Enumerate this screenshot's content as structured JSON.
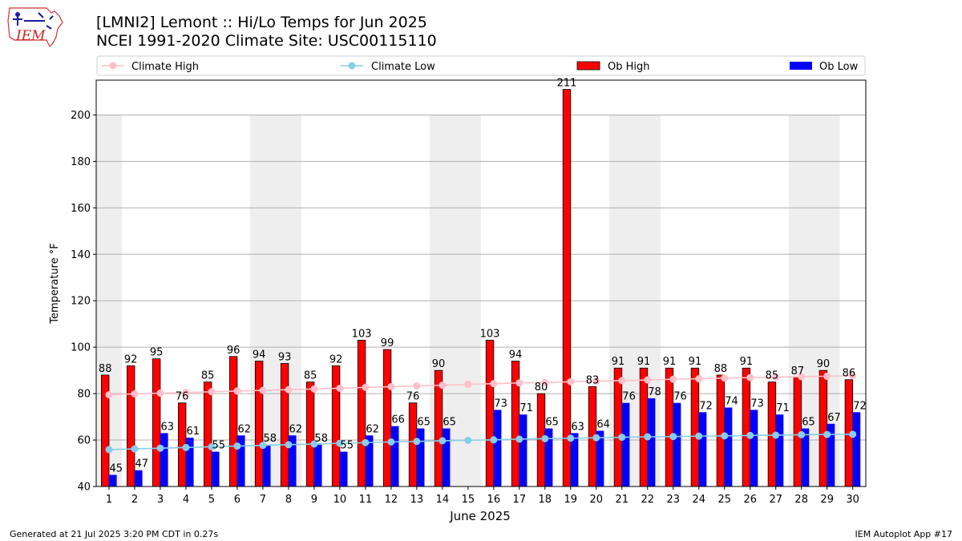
{
  "header": {
    "title_line1": "[LMNI2] Lemont :: Hi/Lo Temps for Jun 2025",
    "title_line2": "NCEI 1991-2020 Climate Site: USC00115110",
    "logo_text": "IEM"
  },
  "footer": {
    "generated": "Generated at 21 Jul 2025 3:20 PM CDT in 0.27s",
    "app": "IEM Autoplot App #17"
  },
  "colors": {
    "ob_high": "#ff0000",
    "ob_low": "#0000ff",
    "climate_high": "#ffc0cb",
    "climate_low": "#87ceeb",
    "weekend_shade": "#eeeeee",
    "grid": "#b0b0b0"
  },
  "chart_data": {
    "type": "bar",
    "xlabel": "June 2025",
    "ylabel": "Temperature °F",
    "ylim": [
      40,
      215
    ],
    "yticks": [
      40,
      60,
      80,
      100,
      120,
      140,
      160,
      180,
      200
    ],
    "grid": "horizontal",
    "legend_placement": "top, above plot",
    "categories": [
      "1",
      "2",
      "3",
      "4",
      "5",
      "6",
      "7",
      "8",
      "9",
      "10",
      "11",
      "12",
      "13",
      "14",
      "15",
      "16",
      "17",
      "18",
      "19",
      "20",
      "21",
      "22",
      "23",
      "24",
      "25",
      "26",
      "27",
      "28",
      "29",
      "30"
    ],
    "weekend_days": [
      1,
      7,
      8,
      14,
      15,
      21,
      22,
      28,
      29
    ],
    "series": [
      {
        "name": "Ob High",
        "kind": "bar",
        "values": [
          88,
          92,
          95,
          76,
          85,
          96,
          94,
          93,
          85,
          92,
          103,
          99,
          76,
          90,
          null,
          103,
          94,
          80,
          211,
          83,
          91,
          91,
          91,
          91,
          88,
          91,
          85,
          87,
          90,
          86
        ]
      },
      {
        "name": "Ob Low",
        "kind": "bar",
        "values": [
          45,
          47,
          63,
          61,
          55,
          62,
          58,
          62,
          58,
          55,
          62,
          66,
          65,
          65,
          null,
          73,
          71,
          65,
          63,
          64,
          76,
          78,
          76,
          72,
          74,
          73,
          71,
          65,
          67,
          72
        ]
      },
      {
        "name": "Climate High",
        "kind": "line",
        "values": [
          79.5,
          79.9,
          80.2,
          80.5,
          80.8,
          81.1,
          81.4,
          81.7,
          82.0,
          82.3,
          82.7,
          83.0,
          83.3,
          83.6,
          84.0,
          84.3,
          84.6,
          84.8,
          85.1,
          85.4,
          85.6,
          85.9,
          86.2,
          86.4,
          86.7,
          86.9,
          87.1,
          87.3,
          87.5,
          87.7
        ]
      },
      {
        "name": "Climate Low",
        "kind": "line",
        "values": [
          55.9,
          56.2,
          56.5,
          56.8,
          57.1,
          57.4,
          57.7,
          58.0,
          58.3,
          58.6,
          58.9,
          59.2,
          59.4,
          59.7,
          59.9,
          60.1,
          60.4,
          60.6,
          60.8,
          61.0,
          61.2,
          61.4,
          61.5,
          61.7,
          61.8,
          62.0,
          62.1,
          62.3,
          62.4,
          62.5
        ]
      }
    ]
  }
}
